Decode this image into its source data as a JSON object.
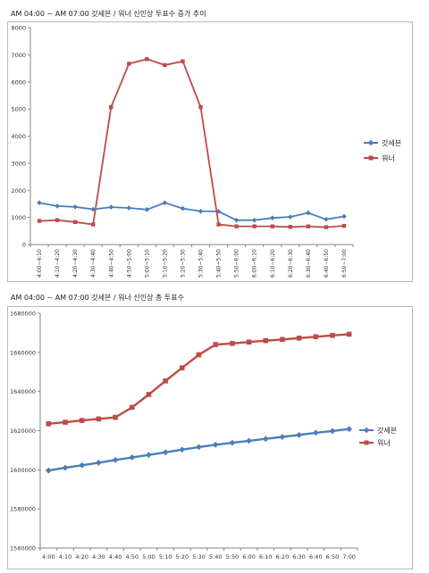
{
  "chart_data": [
    {
      "type": "line",
      "title": "AM 04:00 ~ AM 07:00 갓세븐 / 워너 신인상 투표수 증가 추이",
      "categories": [
        "4:00~4:10",
        "4:10~4:20",
        "4:20~4:30",
        "4:30~4:40",
        "4:40~4:50",
        "4:50~5:00",
        "5:00~5:10",
        "5:10~5:20",
        "5:20~5:30",
        "5:30~5:40",
        "5:40~5:50",
        "5:50~6:00",
        "6:00~6:10",
        "6:10~6:20",
        "6:20~6:30",
        "6:30~6:40",
        "6:40~6:50",
        "6:50~7:00"
      ],
      "ylim": [
        0,
        8000
      ],
      "yticks": [
        "0",
        "1000",
        "2000",
        "3000",
        "4000",
        "5000",
        "6000",
        "7000",
        "8000"
      ],
      "series": [
        {
          "name": "갓세븐",
          "color": "#4a7ebb",
          "marker": "diamond",
          "values": [
            1540,
            1420,
            1390,
            1300,
            1380,
            1350,
            1290,
            1540,
            1330,
            1230,
            1220,
            900,
            900,
            980,
            1020,
            1170,
            930,
            1040
          ]
        },
        {
          "name": "워너",
          "color": "#be4b48",
          "marker": "square",
          "values": [
            870,
            900,
            830,
            740,
            5070,
            6670,
            6840,
            6620,
            6760,
            5070,
            740,
            670,
            670,
            670,
            650,
            670,
            640,
            690
          ]
        }
      ],
      "legend": "right",
      "grid": false
    },
    {
      "type": "line",
      "title": "AM 04:00 ~ AM 07:00 갓세븐 / 워너 신인상 총 투표수",
      "categories": [
        "4:00",
        "4:10",
        "4:20",
        "4:30",
        "4:40",
        "4:50",
        "5:00",
        "5:10",
        "5:20",
        "5:30",
        "5:40",
        "5:50",
        "6:00",
        "6:10",
        "6:20",
        "6:30",
        "6:40",
        "6:50",
        "7:00"
      ],
      "ylim": [
        1560000,
        1680000
      ],
      "yticks": [
        "1560000",
        "1580000",
        "1600000",
        "1620000",
        "1640000",
        "1660000",
        "1680000"
      ],
      "series": [
        {
          "name": "갓세븐",
          "color": "#4a7ebb",
          "marker": "diamond",
          "values": [
            1599600,
            1601000,
            1602300,
            1603600,
            1605000,
            1606300,
            1607600,
            1608900,
            1610300,
            1611600,
            1612800,
            1613800,
            1614800,
            1615800,
            1616800,
            1617800,
            1618900,
            1619800,
            1620800
          ]
        },
        {
          "name": "워너",
          "color": "#be4b48",
          "marker": "square",
          "values": [
            1623500,
            1624300,
            1625200,
            1626000,
            1626800,
            1631900,
            1638500,
            1645400,
            1652100,
            1658800,
            1664000,
            1664600,
            1665300,
            1666000,
            1666600,
            1667300,
            1668000,
            1668700,
            1669300
          ]
        }
      ],
      "legend": "right",
      "grid": false
    }
  ]
}
